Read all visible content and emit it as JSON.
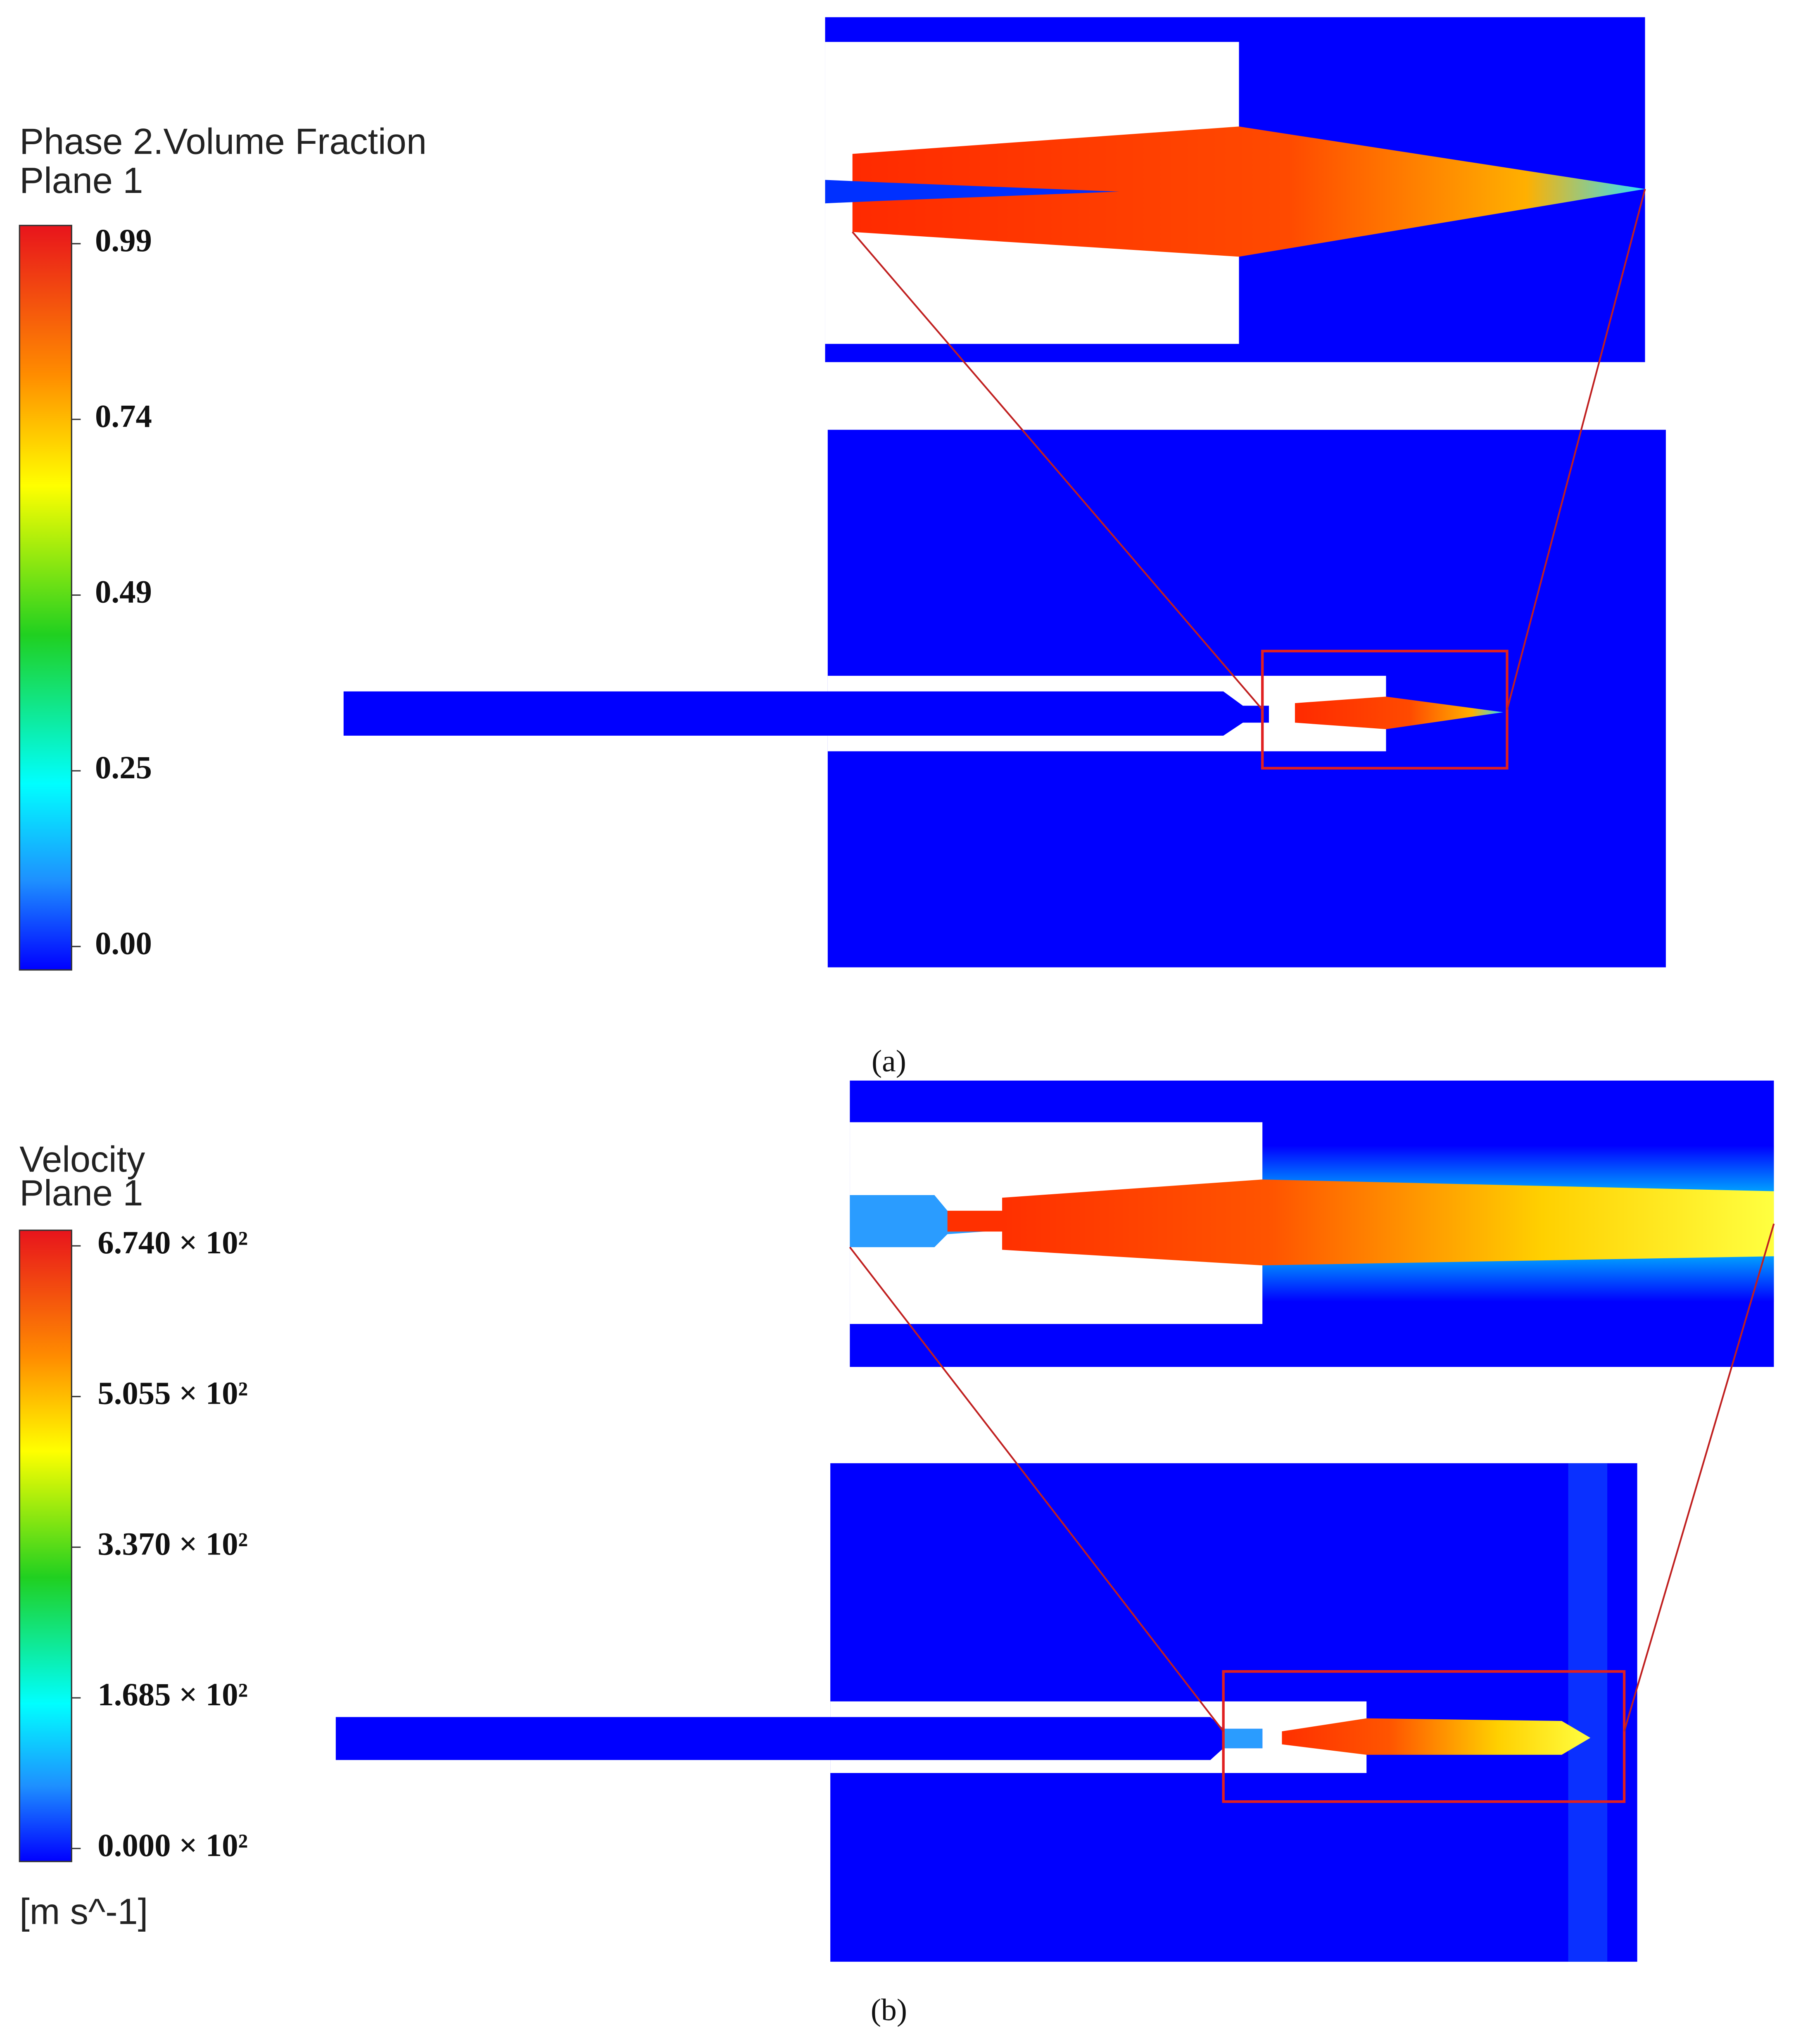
{
  "panels": [
    {
      "caption": "(a)",
      "legend": {
        "title": "Phase 2.Volume Fraction",
        "subtitle": "Plane 1",
        "labels": [
          "0.99",
          "0.74",
          "0.49",
          "0.25",
          "0.00"
        ]
      }
    },
    {
      "caption": "(b)",
      "legend": {
        "title": "Velocity",
        "subtitle": "Plane 1",
        "labels": [
          "6.740 × 10²",
          "5.055 × 10²",
          "3.370 × 10²",
          "1.685 × 10²",
          "0.000 × 10²"
        ],
        "unit": "[m s^-1]"
      }
    }
  ]
}
